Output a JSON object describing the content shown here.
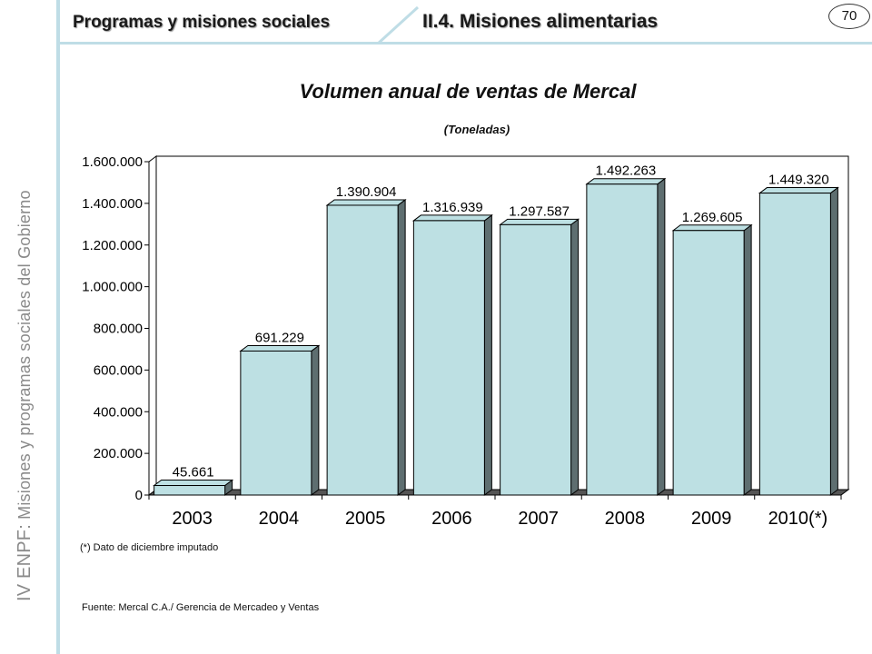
{
  "header": {
    "section": "Programas y misiones sociales",
    "subsection": "II.4. Misiones alimentarias",
    "page_number": "70"
  },
  "sidebar": {
    "acronym": "IV ENPF:",
    "text": "Misiones y programas sociales del Gobierno"
  },
  "colors": {
    "bar_face": "#bde0e3",
    "bar_side": "#5e6e70",
    "accent": "#bfdde6"
  },
  "chart_data": {
    "type": "bar",
    "title": "Volumen anual de ventas de Mercal",
    "subtitle": "(Toneladas)",
    "categories": [
      "2003",
      "2004",
      "2005",
      "2006",
      "2007",
      "2008",
      "2009",
      "2010(*)"
    ],
    "values": [
      45661,
      691229,
      1390904,
      1316939,
      1297587,
      1492263,
      1269605,
      1449320
    ],
    "value_labels": [
      "45.661",
      "691.229",
      "1.390.904",
      "1.316.939",
      "1.297.587",
      "1.492.263",
      "1.269.605",
      "1.449.320"
    ],
    "ylim": [
      0,
      1600000
    ],
    "yticks": [
      0,
      200000,
      400000,
      600000,
      800000,
      1000000,
      1200000,
      1400000,
      1600000
    ],
    "ytick_labels": [
      "0",
      "200.000",
      "400.000",
      "600.000",
      "800.000",
      "1.000.000",
      "1.200.000",
      "1.400.000",
      "1.600.000"
    ],
    "grid": false,
    "legend": "none"
  },
  "footnote": "(*) Dato de diciembre imputado",
  "source": "Fuente: Mercal C.A./ Gerencia de Mercadeo y Ventas"
}
